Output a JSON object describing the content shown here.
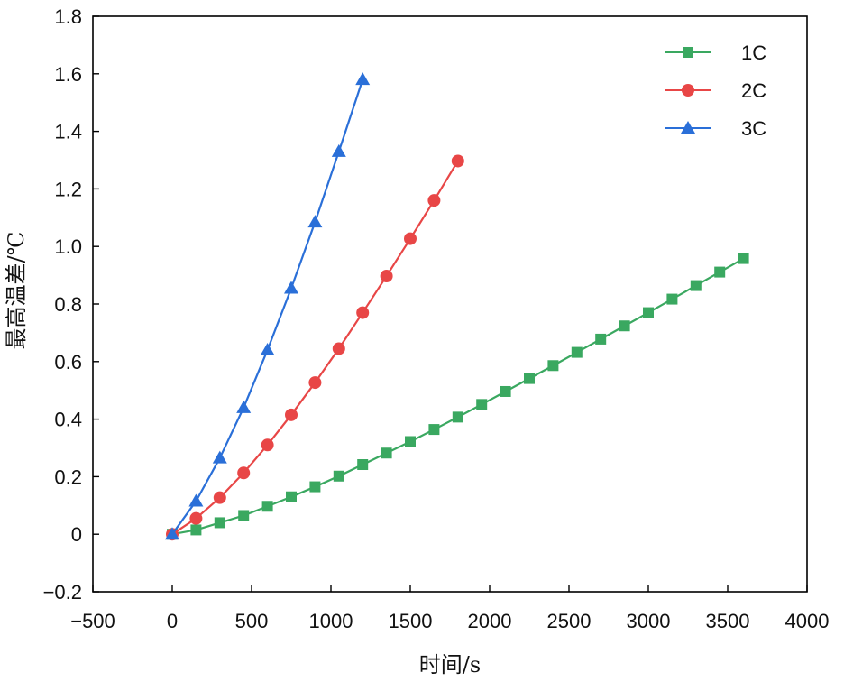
{
  "chart_data": {
    "type": "line",
    "title": "",
    "xlabel": "时间/s",
    "ylabel": "最高温差/℃",
    "xlim": [
      -500,
      4000
    ],
    "ylim": [
      -0.2,
      1.8
    ],
    "xticks": [
      -500,
      0,
      500,
      1000,
      1500,
      2000,
      2500,
      3000,
      3500,
      4000
    ],
    "yticks": [
      -0.2,
      0,
      0.2,
      0.4,
      0.6,
      0.8,
      1.0,
      1.2,
      1.4,
      1.6,
      1.8
    ],
    "xtick_labels": [
      "−500",
      "0",
      "500",
      "1000",
      "1500",
      "2000",
      "2500",
      "3000",
      "3500",
      "4000"
    ],
    "ytick_labels": [
      "−0.2",
      "0",
      "0.2",
      "0.4",
      "0.6",
      "0.8",
      "1.0",
      "1.2",
      "1.4",
      "1.6",
      "1.8"
    ],
    "legend_position": "top-right",
    "grid": false,
    "series": [
      {
        "name": "1C",
        "color": "#3aa860",
        "marker": "square",
        "x": [
          0,
          150,
          300,
          450,
          600,
          750,
          900,
          1050,
          1200,
          1350,
          1500,
          1650,
          1800,
          1950,
          2100,
          2250,
          2400,
          2550,
          2700,
          2850,
          3000,
          3150,
          3300,
          3450,
          3600
        ],
        "y": [
          0,
          0.015,
          0.04,
          0.065,
          0.097,
          0.13,
          0.165,
          0.202,
          0.242,
          0.282,
          0.322,
          0.364,
          0.407,
          0.451,
          0.496,
          0.541,
          0.586,
          0.632,
          0.678,
          0.724,
          0.77,
          0.817,
          0.864,
          0.911,
          0.958
        ]
      },
      {
        "name": "2C",
        "color": "#e84646",
        "marker": "circle",
        "x": [
          0,
          150,
          300,
          450,
          600,
          750,
          900,
          1050,
          1200,
          1350,
          1500,
          1650,
          1800
        ],
        "y": [
          0,
          0.055,
          0.127,
          0.213,
          0.31,
          0.415,
          0.527,
          0.645,
          0.77,
          0.897,
          1.027,
          1.16,
          1.297
        ]
      },
      {
        "name": "3C",
        "color": "#2a6fd8",
        "marker": "triangle",
        "x": [
          0,
          150,
          300,
          450,
          600,
          750,
          900,
          1050,
          1200
        ],
        "y": [
          0,
          0.115,
          0.265,
          0.44,
          0.64,
          0.855,
          1.085,
          1.33,
          1.58
        ]
      }
    ]
  }
}
